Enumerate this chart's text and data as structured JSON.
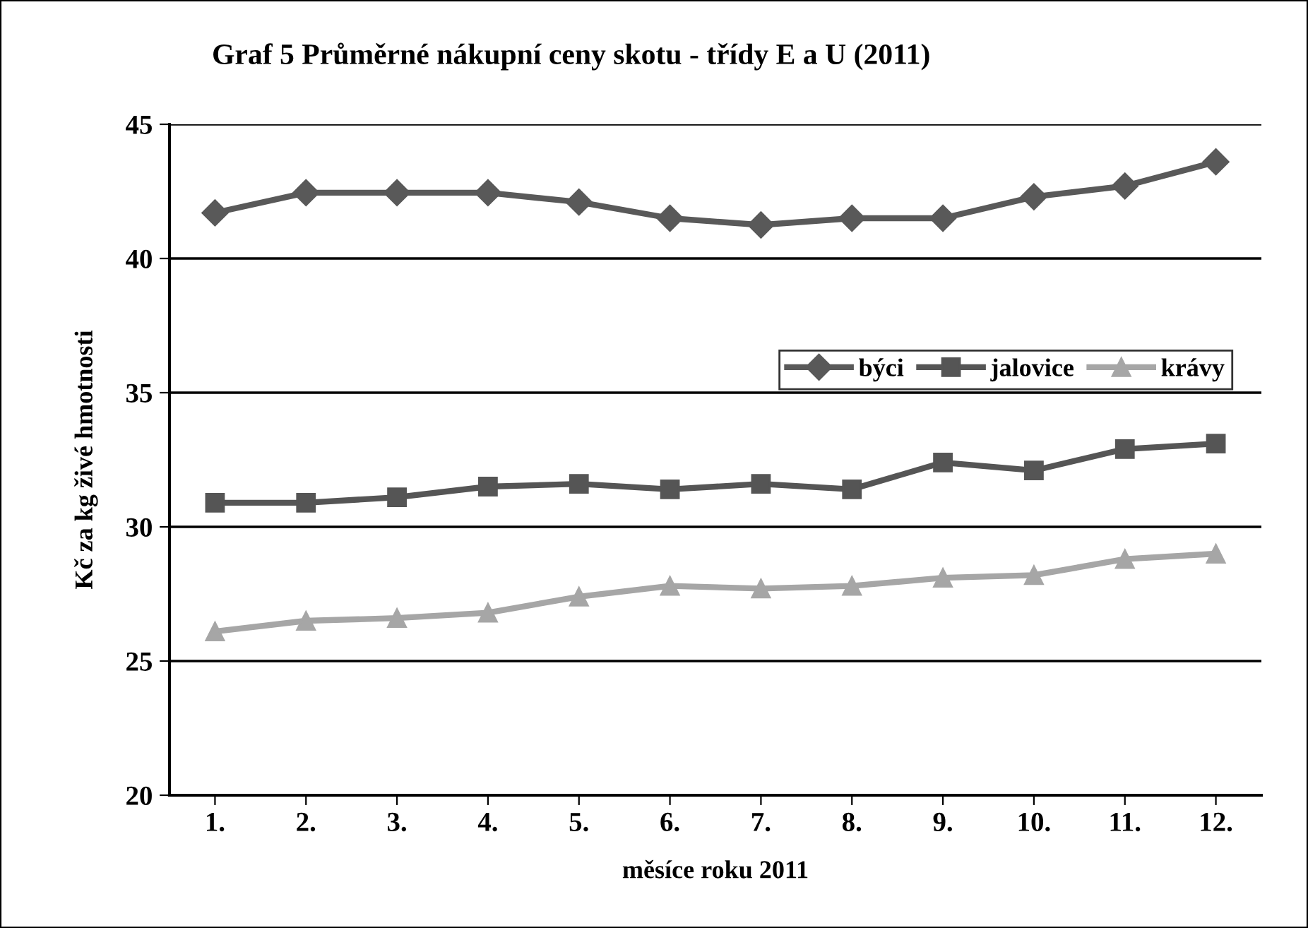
{
  "chart_data": {
    "type": "line",
    "title": "Graf 5 Průměrné nákupní ceny skotu - třídy E a U (2011)",
    "xlabel": "měsíce roku 2011",
    "ylabel": "Kč za kg živé hmotnosti",
    "categories": [
      "1.",
      "2.",
      "3.",
      "4.",
      "5.",
      "6.",
      "7.",
      "8.",
      "9.",
      "10.",
      "11.",
      "12."
    ],
    "series": [
      {
        "name": "býci",
        "color": "#595959",
        "marker": "diamond",
        "values": [
          41.7,
          42.45,
          42.45,
          42.45,
          42.1,
          41.5,
          41.25,
          41.5,
          41.5,
          42.3,
          42.7,
          43.6
        ]
      },
      {
        "name": "jalovice",
        "color": "#555555",
        "marker": "square",
        "values": [
          30.9,
          30.9,
          31.1,
          31.5,
          31.6,
          31.4,
          31.6,
          31.4,
          32.4,
          32.1,
          32.9,
          33.1
        ]
      },
      {
        "name": "krávy",
        "color": "#a6a6a6",
        "marker": "triangle",
        "values": [
          26.1,
          26.5,
          26.6,
          26.8,
          27.4,
          27.8,
          27.7,
          27.8,
          28.1,
          28.2,
          28.8,
          29.0
        ]
      }
    ],
    "ylim": [
      20,
      45
    ],
    "yticks": [
      20,
      25,
      30,
      35,
      40,
      45
    ],
    "grid": "y",
    "legend": "center right",
    "line_style": "solid"
  }
}
